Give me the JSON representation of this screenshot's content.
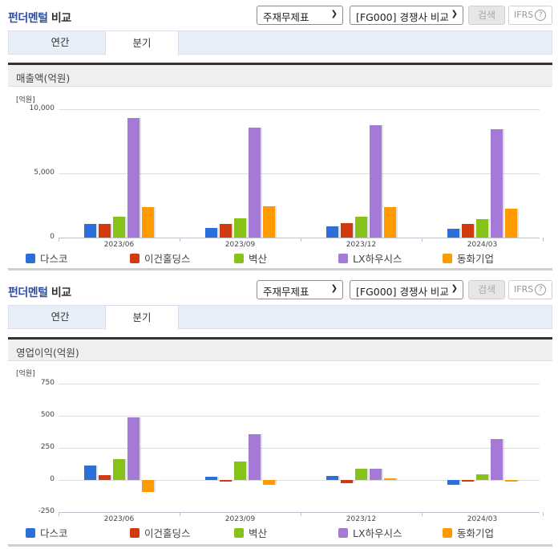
{
  "colors": {
    "series": [
      "#2b6fd9",
      "#d13a0e",
      "#86c21a",
      "#a47ad6",
      "#ff9a00"
    ],
    "title_highlight": "#2f4e9e"
  },
  "panels": [
    {
      "header": {
        "title_highlight": "펀더멘털",
        "title_rest": " 비교",
        "select1": "주재무제표",
        "select2": "[FG000] 경쟁사 비교",
        "search_label": "검색",
        "ifrs_label": "IFRS",
        "help_glyph": "?"
      },
      "tabs": [
        {
          "label": "연간"
        },
        {
          "label": "분기",
          "active": true
        }
      ],
      "chart_title": "매출액(억원)",
      "unit": "[억원]",
      "y_ticks": [
        "10,000",
        "5,000",
        "0"
      ],
      "x_labels": [
        "2023/06",
        "2023/09",
        "2023/12",
        "2024/03"
      ],
      "legend": [
        "다스코",
        "이건홀딩스",
        "벽산",
        "LX하우시스",
        "동화기업"
      ]
    },
    {
      "header": {
        "title_highlight": "펀더멘털",
        "title_rest": " 비교",
        "select1": "주재무제표",
        "select2": "[FG000] 경쟁사 비교",
        "search_label": "검색",
        "ifrs_label": "IFRS",
        "help_glyph": "?"
      },
      "tabs": [
        {
          "label": "연간"
        },
        {
          "label": "분기",
          "active": true
        }
      ],
      "chart_title": "영업이익(억원)",
      "unit": "[억원]",
      "y_ticks": [
        "750",
        "500",
        "250",
        "0",
        "-250"
      ],
      "x_labels": [
        "2023/06",
        "2023/09",
        "2023/12",
        "2024/03"
      ],
      "legend": [
        "다스코",
        "이건홀딩스",
        "벽산",
        "LX하우시스",
        "동화기업"
      ]
    }
  ],
  "chart_data": [
    {
      "type": "bar",
      "title": "매출액(억원)",
      "xlabel": "",
      "ylabel": "[억원]",
      "ylim": [
        0,
        10000
      ],
      "grid": true,
      "legend_position": "bottom",
      "categories": [
        "2023/06",
        "2023/09",
        "2023/12",
        "2024/03"
      ],
      "series": [
        {
          "name": "다스코",
          "values": [
            1060,
            750,
            880,
            690
          ]
        },
        {
          "name": "이건홀딩스",
          "values": [
            1060,
            1060,
            1120,
            1060
          ]
        },
        {
          "name": "벽산",
          "values": [
            1620,
            1500,
            1620,
            1440
          ]
        },
        {
          "name": "LX하우시스",
          "values": [
            9310,
            8560,
            8750,
            8440
          ]
        },
        {
          "name": "동화기업",
          "values": [
            2380,
            2440,
            2380,
            2250
          ]
        }
      ]
    },
    {
      "type": "bar",
      "title": "영업이익(억원)",
      "xlabel": "",
      "ylabel": "[억원]",
      "ylim": [
        -250,
        750
      ],
      "grid": true,
      "legend_position": "bottom",
      "categories": [
        "2023/06",
        "2023/09",
        "2023/12",
        "2024/03"
      ],
      "series": [
        {
          "name": "다스코",
          "values": [
            112,
            22,
            30,
            -38
          ]
        },
        {
          "name": "이건홀딩스",
          "values": [
            37,
            -15,
            -28,
            -8
          ]
        },
        {
          "name": "벽산",
          "values": [
            162,
            145,
            85,
            45
          ]
        },
        {
          "name": "LX하우시스",
          "values": [
            490,
            355,
            85,
            320
          ]
        },
        {
          "name": "동화기업",
          "values": [
            -92,
            -35,
            8,
            -5
          ]
        }
      ]
    }
  ]
}
